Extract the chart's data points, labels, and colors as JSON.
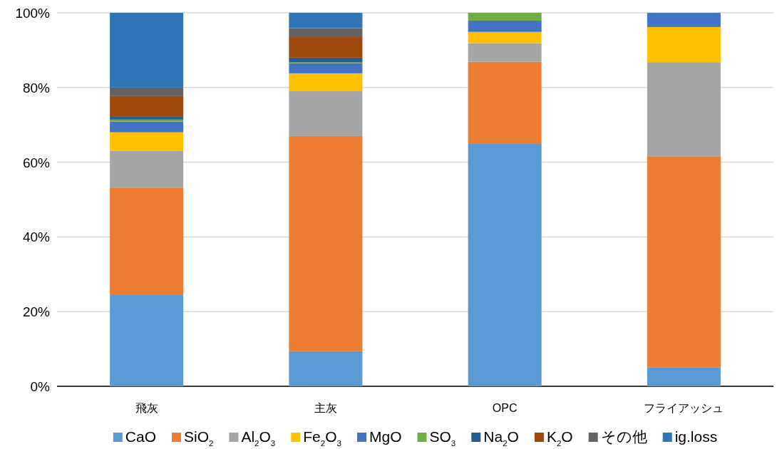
{
  "chart_data": {
    "type": "bar",
    "stacked": true,
    "legend": "bottom",
    "grid": "y",
    "categories": [
      "飛灰",
      "主灰",
      "OPC",
      "フライアッシュ"
    ],
    "ylim": [
      0,
      100
    ],
    "yticks": [
      {
        "value": 0,
        "label": "0%"
      },
      {
        "value": 20,
        "label": "20%"
      },
      {
        "value": 40,
        "label": "40%"
      },
      {
        "value": 60,
        "label": "60%"
      },
      {
        "value": 80,
        "label": "80%"
      },
      {
        "value": 100,
        "label": "100%"
      }
    ],
    "series": [
      {
        "name": "CaO",
        "color": "#5b9bd5",
        "values": [
          24.6,
          9.4,
          64.9,
          5.0
        ]
      },
      {
        "name": "SiO$_{2}$",
        "color": "#ed7d31",
        "values": [
          28.6,
          57.6,
          22.0,
          56.6
        ]
      },
      {
        "name": "Al$_{2}$O$_{3}$",
        "color": "#a5a5a5",
        "values": [
          9.8,
          12.0,
          5.0,
          25.2
        ]
      },
      {
        "name": "Fe$_{2}$O$_{3}$",
        "color": "#ffc000",
        "values": [
          5.0,
          4.8,
          3.0,
          9.4
        ]
      },
      {
        "name": "MgO",
        "color": "#4472c4",
        "values": [
          2.9,
          2.7,
          3.0,
          3.8
        ]
      },
      {
        "name": "SO$_{3}$",
        "color": "#70ad47",
        "values": [
          0.5,
          0.2,
          2.1,
          0
        ]
      },
      {
        "name": "Na$_{2}$O",
        "color": "#255e91",
        "values": [
          0.9,
          1.3,
          0,
          0
        ]
      },
      {
        "name": "K$_{2}$O",
        "color": "#9e480e",
        "values": [
          5.4,
          5.5,
          0,
          0
        ]
      },
      {
        "name": "その他",
        "color": "#636363",
        "values": [
          2.3,
          2.4,
          0,
          0
        ]
      },
      {
        "name": "ig.loss",
        "color": "#2e75b6",
        "values": [
          20.0,
          4.1,
          0,
          0
        ]
      }
    ]
  }
}
